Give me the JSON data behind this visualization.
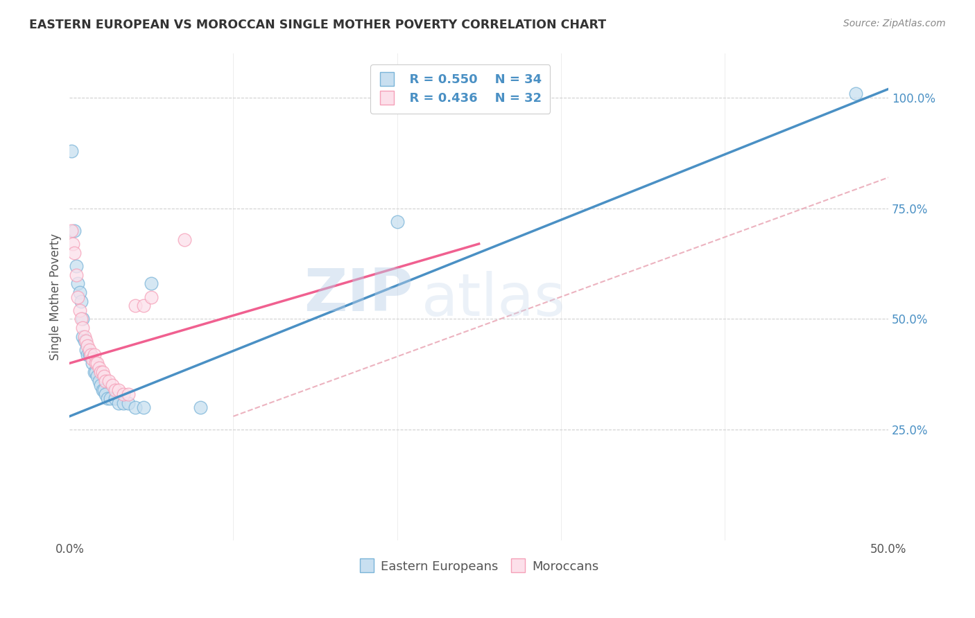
{
  "title": "EASTERN EUROPEAN VS MOROCCAN SINGLE MOTHER POVERTY CORRELATION CHART",
  "source": "Source: ZipAtlas.com",
  "ylabel": "Single Mother Poverty",
  "xlim": [
    0.0,
    0.5
  ],
  "ylim": [
    0.0,
    1.1
  ],
  "xtick_vals": [
    0.0,
    0.1,
    0.2,
    0.3,
    0.4,
    0.5
  ],
  "xtick_labels": [
    "0.0%",
    "",
    "",
    "",
    "",
    "50.0%"
  ],
  "ytick_labels_right": [
    "25.0%",
    "50.0%",
    "75.0%",
    "100.0%"
  ],
  "ytick_positions_right": [
    0.25,
    0.5,
    0.75,
    1.0
  ],
  "legend_r1": "R = 0.550",
  "legend_n1": "N = 34",
  "legend_r2": "R = 0.436",
  "legend_n2": "N = 32",
  "blue_color": "#7ab4d8",
  "pink_color": "#f5a0b8",
  "blue_fill": "#c8dff0",
  "pink_fill": "#fce0ea",
  "line_blue": "#4a90c4",
  "line_pink": "#f06090",
  "watermark_zip": "ZIP",
  "watermark_atlas": "atlas",
  "eastern_europeans": [
    [
      0.001,
      0.88
    ],
    [
      0.003,
      0.7
    ],
    [
      0.004,
      0.62
    ],
    [
      0.005,
      0.58
    ],
    [
      0.006,
      0.56
    ],
    [
      0.007,
      0.54
    ],
    [
      0.008,
      0.5
    ],
    [
      0.008,
      0.46
    ],
    [
      0.009,
      0.45
    ],
    [
      0.01,
      0.43
    ],
    [
      0.011,
      0.42
    ],
    [
      0.012,
      0.42
    ],
    [
      0.013,
      0.42
    ],
    [
      0.014,
      0.4
    ],
    [
      0.015,
      0.38
    ],
    [
      0.016,
      0.38
    ],
    [
      0.017,
      0.37
    ],
    [
      0.018,
      0.36
    ],
    [
      0.019,
      0.35
    ],
    [
      0.02,
      0.34
    ],
    [
      0.021,
      0.34
    ],
    [
      0.022,
      0.33
    ],
    [
      0.023,
      0.32
    ],
    [
      0.025,
      0.32
    ],
    [
      0.028,
      0.32
    ],
    [
      0.03,
      0.31
    ],
    [
      0.033,
      0.31
    ],
    [
      0.036,
      0.31
    ],
    [
      0.04,
      0.3
    ],
    [
      0.045,
      0.3
    ],
    [
      0.05,
      0.58
    ],
    [
      0.08,
      0.3
    ],
    [
      0.2,
      0.72
    ],
    [
      0.48,
      1.01
    ]
  ],
  "moroccans": [
    [
      0.001,
      0.7
    ],
    [
      0.002,
      0.67
    ],
    [
      0.003,
      0.65
    ],
    [
      0.004,
      0.6
    ],
    [
      0.005,
      0.55
    ],
    [
      0.006,
      0.52
    ],
    [
      0.007,
      0.5
    ],
    [
      0.008,
      0.48
    ],
    [
      0.009,
      0.46
    ],
    [
      0.01,
      0.45
    ],
    [
      0.011,
      0.44
    ],
    [
      0.012,
      0.43
    ],
    [
      0.013,
      0.42
    ],
    [
      0.014,
      0.41
    ],
    [
      0.015,
      0.42
    ],
    [
      0.016,
      0.4
    ],
    [
      0.017,
      0.4
    ],
    [
      0.018,
      0.39
    ],
    [
      0.019,
      0.38
    ],
    [
      0.02,
      0.38
    ],
    [
      0.021,
      0.37
    ],
    [
      0.022,
      0.36
    ],
    [
      0.024,
      0.36
    ],
    [
      0.026,
      0.35
    ],
    [
      0.028,
      0.34
    ],
    [
      0.03,
      0.34
    ],
    [
      0.033,
      0.33
    ],
    [
      0.036,
      0.33
    ],
    [
      0.04,
      0.53
    ],
    [
      0.045,
      0.53
    ],
    [
      0.05,
      0.55
    ],
    [
      0.07,
      0.68
    ]
  ],
  "ref_line": [
    [
      0.0,
      0.0
    ],
    [
      0.5,
      0.75
    ]
  ]
}
